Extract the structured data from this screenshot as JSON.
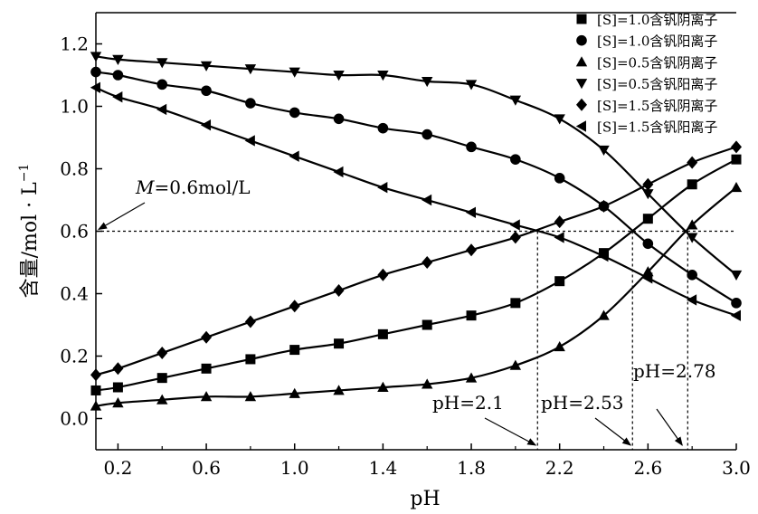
{
  "chart_data": {
    "type": "line",
    "xlabel": "pH",
    "ylabel_main": "含量/mol · L",
    "ylabel_sup": "−1",
    "xlim": [
      0.1,
      3.0
    ],
    "ylim": [
      -0.1,
      1.3
    ],
    "xticks": [
      0.2,
      0.6,
      1.0,
      1.4,
      1.8,
      2.2,
      2.6,
      3.0
    ],
    "xtick_labels": [
      "0.2",
      "0.6",
      "1.0",
      "1.4",
      "1.8",
      "2.2",
      "2.6",
      "3.0"
    ],
    "yticks": [
      0.0,
      0.2,
      0.4,
      0.6,
      0.8,
      1.0,
      1.2
    ],
    "ytick_labels": [
      "0.0",
      "0.2",
      "0.4",
      "0.6",
      "0.8",
      "1.0",
      "1.2"
    ],
    "series": [
      {
        "name": "[S]=1.0含钒阴离子",
        "marker": "square",
        "x": [
          0.1,
          0.2,
          0.4,
          0.6,
          0.8,
          1.0,
          1.2,
          1.4,
          1.6,
          1.8,
          2.0,
          2.2,
          2.4,
          2.6,
          2.8,
          3.0
        ],
        "y": [
          0.09,
          0.1,
          0.13,
          0.16,
          0.19,
          0.22,
          0.24,
          0.27,
          0.3,
          0.33,
          0.37,
          0.44,
          0.53,
          0.64,
          0.75,
          0.83
        ]
      },
      {
        "name": "[S]=1.0含钒阳离子",
        "marker": "circle",
        "x": [
          0.1,
          0.2,
          0.4,
          0.6,
          0.8,
          1.0,
          1.2,
          1.4,
          1.6,
          1.8,
          2.0,
          2.2,
          2.4,
          2.6,
          2.8,
          3.0
        ],
        "y": [
          1.11,
          1.1,
          1.07,
          1.05,
          1.01,
          0.98,
          0.96,
          0.93,
          0.91,
          0.87,
          0.83,
          0.77,
          0.68,
          0.56,
          0.46,
          0.37
        ]
      },
      {
        "name": "[S]=0.5含钒阴离子",
        "marker": "triangle-up",
        "x": [
          0.1,
          0.2,
          0.4,
          0.6,
          0.8,
          1.0,
          1.2,
          1.4,
          1.6,
          1.8,
          2.0,
          2.2,
          2.4,
          2.6,
          2.8,
          3.0
        ],
        "y": [
          0.04,
          0.05,
          0.06,
          0.07,
          0.07,
          0.08,
          0.09,
          0.1,
          0.11,
          0.13,
          0.17,
          0.23,
          0.33,
          0.47,
          0.62,
          0.74
        ]
      },
      {
        "name": "[S]=0.5含钒阳离子",
        "marker": "triangle-down",
        "x": [
          0.1,
          0.2,
          0.4,
          0.6,
          0.8,
          1.0,
          1.2,
          1.4,
          1.6,
          1.8,
          2.0,
          2.2,
          2.4,
          2.6,
          2.8,
          3.0
        ],
        "y": [
          1.16,
          1.15,
          1.14,
          1.13,
          1.12,
          1.11,
          1.1,
          1.1,
          1.08,
          1.07,
          1.02,
          0.96,
          0.86,
          0.72,
          0.58,
          0.46
        ]
      },
      {
        "name": "[S]=1.5含钒阴离子",
        "marker": "diamond",
        "x": [
          0.1,
          0.2,
          0.4,
          0.6,
          0.8,
          1.0,
          1.2,
          1.4,
          1.6,
          1.8,
          2.0,
          2.2,
          2.4,
          2.6,
          2.8,
          3.0
        ],
        "y": [
          0.14,
          0.16,
          0.21,
          0.26,
          0.31,
          0.36,
          0.41,
          0.46,
          0.5,
          0.54,
          0.58,
          0.63,
          0.68,
          0.75,
          0.82,
          0.87
        ]
      },
      {
        "name": "[S]=1.5含钒阳离子",
        "marker": "triangle-left",
        "x": [
          0.1,
          0.2,
          0.4,
          0.6,
          0.8,
          1.0,
          1.2,
          1.4,
          1.6,
          1.8,
          2.0,
          2.2,
          2.4,
          2.6,
          2.8,
          3.0
        ],
        "y": [
          1.06,
          1.03,
          0.99,
          0.94,
          0.89,
          0.84,
          0.79,
          0.74,
          0.7,
          0.66,
          0.62,
          0.58,
          0.52,
          0.45,
          0.38,
          0.33
        ]
      }
    ],
    "reference_line": {
      "y": 0.6,
      "label_italic": "M",
      "label_rest": "=0.6mol/L"
    },
    "vertical_markers": [
      {
        "x": 2.1,
        "label": "pH=2.1"
      },
      {
        "x": 2.53,
        "label": "pH=2.53"
      },
      {
        "x": 2.78,
        "label": "pH=2.78"
      }
    ],
    "legend_position": "top-right"
  }
}
